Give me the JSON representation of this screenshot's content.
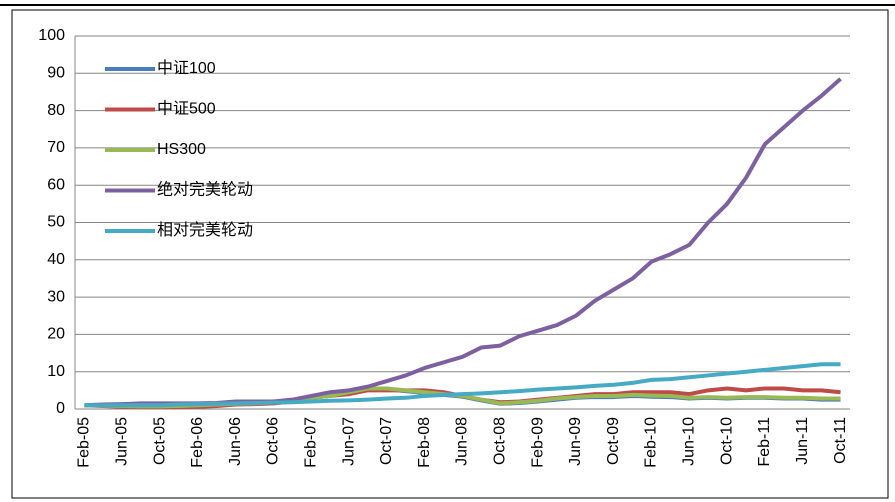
{
  "chart_data": {
    "type": "line",
    "categories": [
      "Feb-05",
      null,
      "Jun-05",
      null,
      "Oct-05",
      null,
      "Feb-06",
      null,
      "Jun-06",
      null,
      "Oct-06",
      null,
      "Feb-07",
      null,
      "Jun-07",
      null,
      "Oct-07",
      null,
      "Feb-08",
      null,
      "Jun-08",
      null,
      "Oct-08",
      null,
      "Feb-09",
      null,
      "Jun-09",
      null,
      "Oct-09",
      null,
      "Feb-10",
      null,
      "Jun-10",
      null,
      "Oct-10",
      null,
      "Feb-11",
      null,
      "Jun-11",
      null,
      "Oct-11"
    ],
    "series": [
      {
        "name": "中证100",
        "color": "#4a7ebb",
        "values": [
          1,
          0.9,
          0.8,
          0.7,
          0.7,
          0.8,
          1,
          1.2,
          1.4,
          1.5,
          1.8,
          2.3,
          3,
          3.5,
          4.3,
          5.3,
          5.3,
          4.8,
          4.3,
          3.8,
          3.3,
          2.3,
          1.4,
          1.6,
          2,
          2.5,
          3,
          3.2,
          3.2,
          3.5,
          3.3,
          3.2,
          2.8,
          3,
          2.8,
          3,
          3,
          2.8,
          2.8,
          2.5,
          2.5
        ]
      },
      {
        "name": "中证500",
        "color": "#be4b48",
        "values": [
          1,
          0.8,
          0.6,
          0.5,
          0.5,
          0.5,
          0.6,
          0.8,
          1.2,
          1.3,
          1.5,
          2,
          3,
          3.5,
          4,
          5,
          5,
          5,
          5,
          4.5,
          3.5,
          2.5,
          1.8,
          2,
          2.5,
          3,
          3.5,
          4,
          4,
          4.5,
          4.5,
          4.5,
          4,
          5,
          5.5,
          5,
          5.5,
          5.5,
          5,
          5,
          4.5
        ]
      },
      {
        "name": "HS300",
        "color": "#98b954",
        "values": [
          1,
          0.9,
          0.8,
          0.7,
          0.7,
          0.8,
          1,
          1.2,
          1.4,
          1.5,
          1.8,
          2.3,
          3,
          3.5,
          4.5,
          5.5,
          5.5,
          5,
          4.5,
          4,
          3.5,
          2.5,
          1.5,
          1.8,
          2.2,
          2.8,
          3.2,
          3.5,
          3.5,
          3.8,
          3.6,
          3.5,
          3,
          3.2,
          3,
          3.2,
          3.2,
          3,
          3,
          2.8,
          2.8
        ]
      },
      {
        "name": "绝对完美轮动",
        "color": "#7d60a0",
        "values": [
          1,
          1.2,
          1.3,
          1.5,
          1.5,
          1.5,
          1.5,
          1.6,
          2,
          2,
          2,
          2.5,
          3.5,
          4.5,
          5,
          6,
          7.5,
          9,
          11,
          12.5,
          14,
          16.5,
          17,
          19.5,
          21,
          22.5,
          25,
          29,
          32,
          35,
          39.5,
          41.5,
          44,
          50,
          55,
          62,
          71,
          75.5,
          80,
          84,
          88.5
        ]
      },
      {
        "name": "相对完美轮动",
        "color": "#46aac5",
        "values": [
          1,
          1,
          1,
          1,
          1,
          1.2,
          1.3,
          1.4,
          1.5,
          1.6,
          1.7,
          1.8,
          2,
          2.2,
          2.3,
          2.5,
          2.8,
          3,
          3.5,
          3.8,
          4,
          4.2,
          4.5,
          4.8,
          5.2,
          5.5,
          5.8,
          6.2,
          6.5,
          7,
          7.8,
          8,
          8.5,
          9,
          9.5,
          10,
          10.5,
          11,
          11.5,
          12,
          12
        ]
      }
    ],
    "ylim": [
      0,
      100
    ],
    "yticks": [
      0,
      10,
      20,
      30,
      40,
      50,
      60,
      70,
      80,
      90,
      100
    ],
    "grid": true,
    "legend": "top-left"
  }
}
